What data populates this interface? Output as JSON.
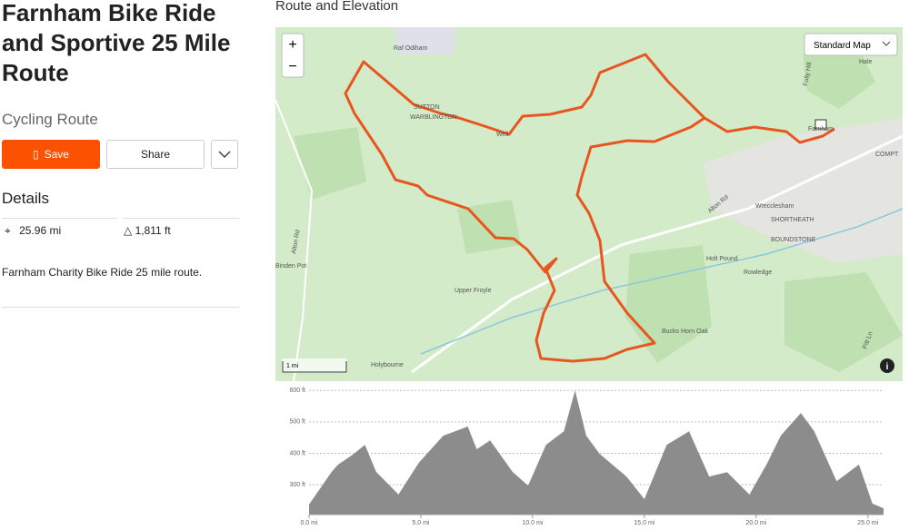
{
  "header": {
    "title": "Farnham Bike Ride and Sportive 25 Mile Route",
    "subtitle": "Cycling Route"
  },
  "actions": {
    "save": "Save",
    "share": "Share"
  },
  "details": {
    "heading": "Details",
    "distance": "25.96 mi",
    "elevation_gain": "1,811 ft",
    "description": "Farnham Charity Bike Ride 25 mile route."
  },
  "map": {
    "heading": "Route and Elevation",
    "map_type": "Standard Map",
    "zoom_in": "+",
    "zoom_out": "−",
    "scale": "1 mi",
    "labels": [
      "Raf Odiham",
      "SUTTON",
      "WARBLINGTON",
      "Well",
      "Hale",
      "Farnham",
      "COMPT",
      "Alton Rd",
      "Wrecclesham",
      "SHORTHEATH",
      "BOUNDSTONE",
      "Holt Pound",
      "Rowledge",
      "Upper Froyle",
      "Bucks Horn Oak",
      "Holybourne",
      "Binden Pot",
      "Alton Rd",
      "Folly Hill",
      "Pitt Ln"
    ]
  },
  "chart_data": {
    "type": "area",
    "color": "#8c8c8c",
    "x": [
      0,
      1,
      1.3,
      2,
      2.5,
      3,
      4,
      4.9,
      6,
      7.1,
      7.5,
      8.1,
      9.1,
      9.8,
      10.6,
      11.4,
      11.9,
      12.4,
      13,
      14.2,
      15,
      16,
      17,
      17.9,
      18.7,
      19.7,
      20.5,
      21.1,
      22,
      22.6,
      23.6,
      24.6,
      25.2,
      25.7
    ],
    "values": [
      237,
      340,
      364,
      398,
      427,
      341,
      269,
      369,
      456,
      485,
      413,
      441,
      341,
      297,
      427,
      470,
      600,
      456,
      398,
      326,
      254,
      427,
      470,
      326,
      340,
      269,
      369,
      456,
      528,
      470,
      311,
      364,
      240,
      225
    ],
    "xlim": [
      0,
      25.7
    ],
    "ylim": [
      205,
      615
    ],
    "xticks": [
      {
        "value": 0,
        "label": "0.0 mi"
      },
      {
        "value": 5,
        "label": "5.0 mi"
      },
      {
        "value": 10,
        "label": "10.0 mi"
      },
      {
        "value": 15,
        "label": "15.0 mi"
      },
      {
        "value": 20,
        "label": "20.0 mi"
      },
      {
        "value": 25,
        "label": "25.0 mi"
      }
    ],
    "yticks": [
      {
        "value": 300,
        "label": "300 ft"
      },
      {
        "value": 400,
        "label": "400 ft"
      },
      {
        "value": 500,
        "label": "500 ft"
      },
      {
        "value": 600,
        "label": "600 ft"
      }
    ],
    "grid": true
  }
}
